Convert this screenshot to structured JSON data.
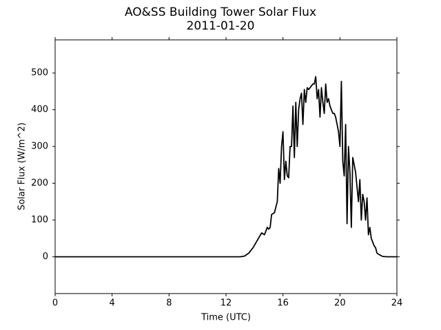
{
  "chart_data": {
    "type": "line",
    "title": "AO&SS Building Tower Solar Flux",
    "subtitle": "2011-01-20",
    "xlabel": "Time (UTC)",
    "ylabel": "Solar Flux (W/m^2)",
    "color": "#000000",
    "xlim": [
      0,
      24
    ],
    "xticks": [
      0,
      4,
      8,
      12,
      16,
      20,
      24
    ],
    "ylim": [
      -100,
      590
    ],
    "yticks": [
      0,
      100,
      200,
      300,
      400,
      500
    ],
    "x": [
      0,
      12,
      13.0,
      13.3,
      13.6,
      13.9,
      14.2,
      14.5,
      14.7,
      14.9,
      15.0,
      15.1,
      15.2,
      15.4,
      15.6,
      15.7,
      15.8,
      15.9,
      16.0,
      16.1,
      16.2,
      16.3,
      16.4,
      16.5,
      16.6,
      16.7,
      16.8,
      16.9,
      17.0,
      17.1,
      17.2,
      17.3,
      17.4,
      17.5,
      17.6,
      17.7,
      17.8,
      17.9,
      18.0,
      18.1,
      18.2,
      18.3,
      18.4,
      18.5,
      18.6,
      18.7,
      18.8,
      18.9,
      19.0,
      19.1,
      19.2,
      19.3,
      19.4,
      19.5,
      19.6,
      19.7,
      19.8,
      19.9,
      20.0,
      20.1,
      20.2,
      20.3,
      20.4,
      20.5,
      20.6,
      20.7,
      20.8,
      20.9,
      21.0,
      21.1,
      21.3,
      21.4,
      21.5,
      21.6,
      21.7,
      21.8,
      21.9,
      22.0,
      22.1,
      22.2,
      22.3,
      22.4,
      22.5,
      22.6,
      22.8,
      23.0,
      23.3,
      24
    ],
    "values": [
      0,
      0,
      0,
      2,
      10,
      25,
      45,
      65,
      60,
      80,
      75,
      80,
      115,
      120,
      150,
      240,
      200,
      300,
      340,
      210,
      260,
      220,
      215,
      300,
      300,
      410,
      270,
      420,
      300,
      400,
      430,
      445,
      360,
      455,
      420,
      460,
      455,
      460,
      465,
      470,
      470,
      490,
      430,
      455,
      380,
      460,
      420,
      390,
      470,
      420,
      430,
      410,
      400,
      390,
      390,
      380,
      360,
      340,
      300,
      477,
      260,
      220,
      360,
      90,
      300,
      230,
      80,
      270,
      250,
      230,
      150,
      210,
      100,
      170,
      150,
      100,
      160,
      60,
      80,
      50,
      40,
      30,
      25,
      10,
      5,
      1,
      0,
      0
    ]
  }
}
